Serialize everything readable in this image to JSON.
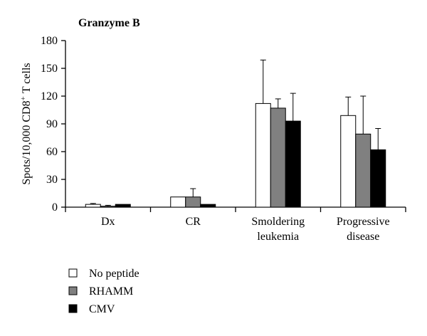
{
  "chart_data": {
    "type": "bar",
    "title": "Granzyme B",
    "ylabel": "Spots/10,000 CD8",
    "ylabel_superscript": "+",
    "ylabel_suffix": " T cells",
    "ylim": [
      0,
      180
    ],
    "yticks": [
      "0",
      "30",
      "60",
      "90",
      "120",
      "150",
      "180"
    ],
    "categories": [
      [
        "Dx"
      ],
      [
        "CR"
      ],
      [
        "Smoldering",
        "leukemia"
      ],
      [
        "Progressive",
        "disease"
      ]
    ],
    "series": [
      {
        "name": "No peptide",
        "color": "#ffffff",
        "values": [
          3,
          11,
          112,
          99
        ],
        "errors": [
          1,
          0,
          47,
          20
        ]
      },
      {
        "name": "RHAMM",
        "color": "#808080",
        "values": [
          1,
          11,
          107,
          79
        ],
        "errors": [
          1,
          9,
          10,
          41
        ]
      },
      {
        "name": "CMV",
        "color": "#000000",
        "values": [
          3,
          3,
          93,
          62
        ],
        "errors": [
          0,
          0,
          30,
          23
        ]
      }
    ],
    "legend_position": "bottom-left",
    "grid": false
  }
}
